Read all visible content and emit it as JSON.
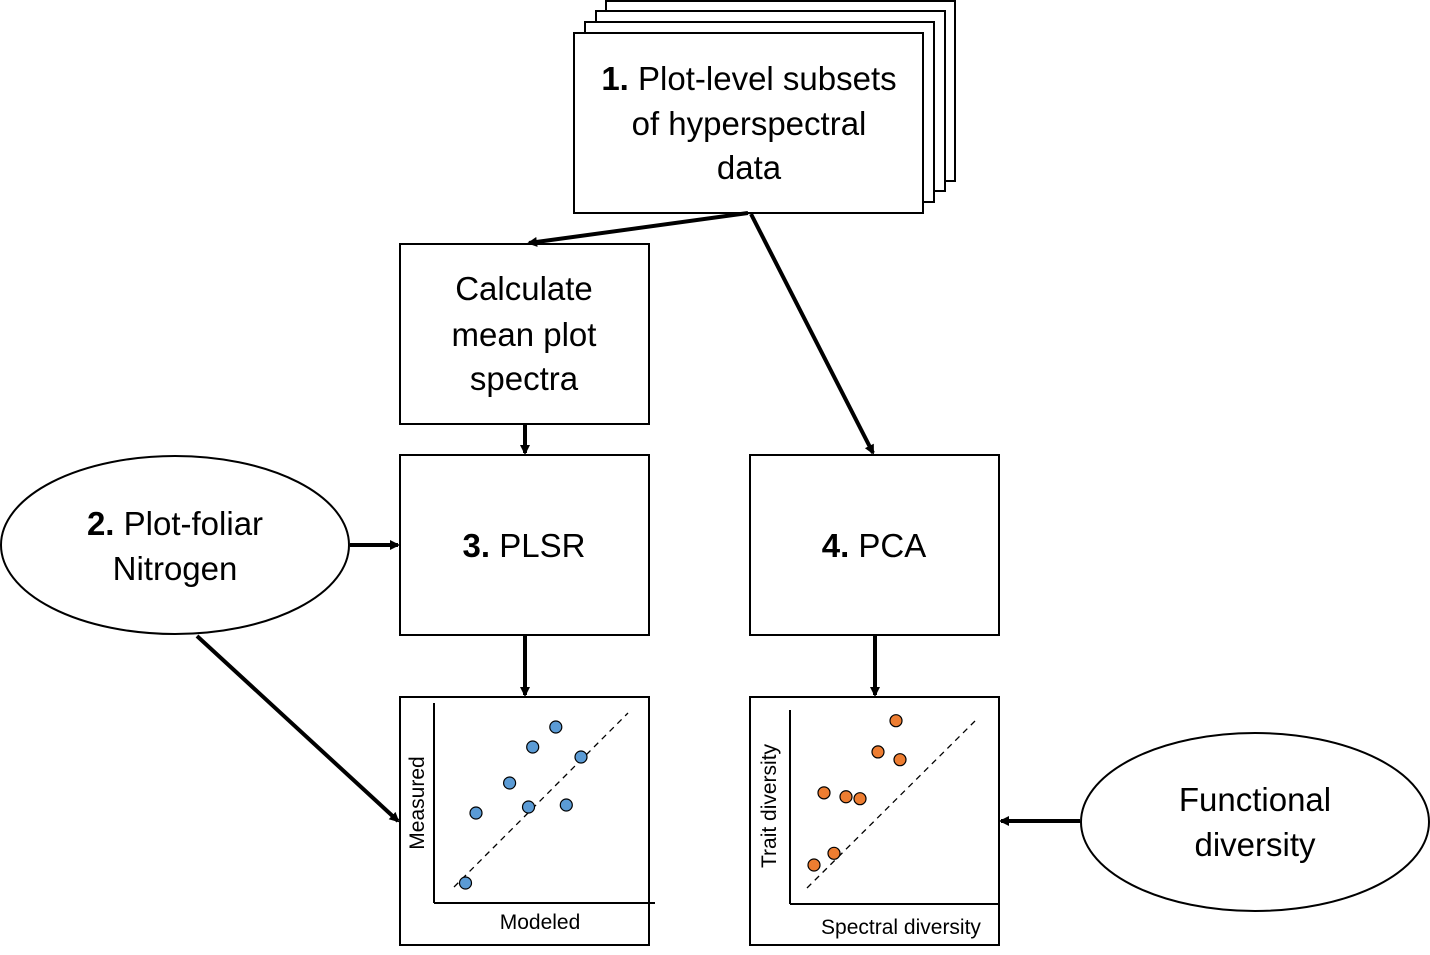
{
  "nodes": {
    "subsets": {
      "number": "1.",
      "lines": [
        "Plot-level subsets",
        "of hyperspectral",
        "data"
      ]
    },
    "mean_spectra": {
      "lines": [
        "Calculate",
        "mean plot",
        "spectra"
      ]
    },
    "foliar_n": {
      "number": "2.",
      "line1_rest": " Plot-foliar",
      "line2": "Nitrogen"
    },
    "plsr": {
      "number": "3.",
      "label": " PLSR"
    },
    "pca": {
      "number": "4.",
      "label": " PCA"
    },
    "functional_diversity": {
      "lines": [
        "Functional",
        "diversity"
      ]
    }
  },
  "plots": {
    "plsr_plot": {
      "ylabel": "Measured",
      "xlabel": "Modeled",
      "point_color": "#5b9bd5",
      "points": [
        [
          0.15,
          0.1
        ],
        [
          0.2,
          0.45
        ],
        [
          0.36,
          0.6
        ],
        [
          0.45,
          0.48
        ],
        [
          0.47,
          0.78
        ],
        [
          0.58,
          0.88
        ],
        [
          0.63,
          0.49
        ],
        [
          0.7,
          0.73
        ]
      ]
    },
    "pca_plot": {
      "ylabel": "Trait diversity",
      "xlabel": "Spectral diversity",
      "point_color": "#ed7d31",
      "points": [
        [
          0.12,
          0.2
        ],
        [
          0.22,
          0.26
        ],
        [
          0.17,
          0.57
        ],
        [
          0.28,
          0.55
        ],
        [
          0.35,
          0.54
        ],
        [
          0.44,
          0.78
        ],
        [
          0.53,
          0.94
        ],
        [
          0.55,
          0.74
        ]
      ]
    }
  },
  "colors": {
    "line": "#000000",
    "background": "#ffffff"
  }
}
